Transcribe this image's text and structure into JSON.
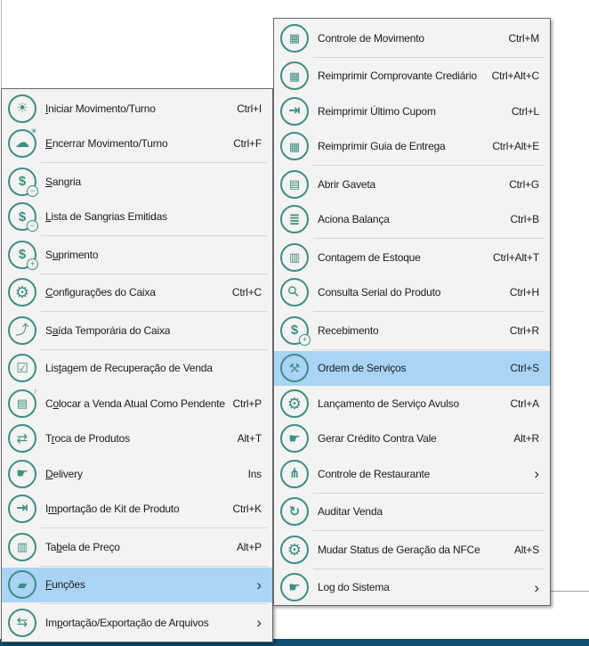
{
  "colors": {
    "accent_teal": "#3f8d84",
    "highlight_blue": "#a9d4f5",
    "menu_background": "#f3f3f2",
    "menu_border": "#666a6b",
    "separator": "#d6d6d6",
    "text": "#1c1c1c",
    "bottom_edge_bar": "#104e72"
  },
  "glyphs": {
    "submenu_arrow": "›"
  },
  "icons": {
    "sun-icon": {
      "glyph": "☀",
      "size": 15
    },
    "cloud-sun-icon": {
      "glyph": "☁",
      "size": 16,
      "badge": "☀",
      "badge_style": "plain-tr"
    },
    "money-minus-icon": {
      "glyph": "$",
      "size": 15,
      "bold": true,
      "badge": "−"
    },
    "money-plus-icon": {
      "glyph": "$",
      "size": 15,
      "bold": true,
      "badge": "+"
    },
    "gear-wrench-icon": {
      "glyph": "⚙",
      "size": 18
    },
    "person-exit-icon": {
      "glyph": "⤴",
      "size": 15
    },
    "clipboard-check-icon": {
      "glyph": "☑",
      "size": 15
    },
    "drawer-up-icon": {
      "glyph": "▤",
      "size": 13,
      "badge": "↑",
      "badge_style": "plain-tr"
    },
    "swap-arrows-icon": {
      "glyph": "⇄",
      "size": 15
    },
    "hand-card-icon": {
      "glyph": "☛",
      "size": 15
    },
    "import-door-icon": {
      "glyph": "⇥",
      "size": 16,
      "bold": true
    },
    "clipboard-icon": {
      "glyph": "▥",
      "size": 13
    },
    "register-icon": {
      "glyph": "▦",
      "size": 13
    },
    "folder-functions-icon": {
      "glyph": "▰",
      "size": 14
    },
    "transfer-arrows-icon": {
      "glyph": "⇆",
      "size": 15
    },
    "drawer-icon": {
      "glyph": "▤",
      "size": 13
    },
    "layers-icon": {
      "glyph": "≣",
      "size": 15,
      "bold": true
    },
    "magnifier-icon": {
      "glyph": "⚲",
      "size": 16,
      "rotate": -45,
      "bold": true
    },
    "tools-icon": {
      "glyph": "⚒",
      "size": 14
    },
    "cutlery-icon": {
      "glyph": "⋔",
      "size": 15,
      "bold": true
    },
    "refresh-circle-icon": {
      "glyph": "↻",
      "size": 15,
      "bold": true
    }
  },
  "left_menu": {
    "items": [
      {
        "label": "Iniciar Movimento/Turno",
        "accel": 0,
        "shortcut": "Ctrl+I",
        "icon": "sun-icon"
      },
      {
        "label": "Encerrar Movimento/Turno",
        "accel": 0,
        "shortcut": "Ctrl+F",
        "icon": "cloud-sun-icon",
        "separator_after": true
      },
      {
        "label": "Sangria",
        "accel": 0,
        "icon": "money-minus-icon"
      },
      {
        "label": "Lista de Sangrias Emitidas",
        "accel": 0,
        "icon": "money-minus-icon",
        "separator_after": true
      },
      {
        "label": "Suprimento",
        "accel": 1,
        "icon": "money-plus-icon",
        "separator_after": true
      },
      {
        "label": "Configurações do Caixa",
        "accel": 0,
        "shortcut": "Ctrl+C",
        "icon": "gear-wrench-icon",
        "separator_after": true
      },
      {
        "label": "Saída Temporária do Caixa",
        "accel": 1,
        "icon": "person-exit-icon",
        "separator_after": true
      },
      {
        "label": "Listagem de Recuperação de Venda",
        "accel": 3,
        "icon": "clipboard-check-icon"
      },
      {
        "label": "Colocar a Venda Atual Como Pendente",
        "accel": 1,
        "shortcut": "Ctrl+P",
        "icon": "drawer-up-icon"
      },
      {
        "label": "Troca de Produtos",
        "accel": 1,
        "shortcut": "Alt+T",
        "icon": "swap-arrows-icon"
      },
      {
        "label": "Delivery",
        "accel": 0,
        "shortcut": "Ins",
        "icon": "hand-card-icon"
      },
      {
        "label": "Importação de Kit de Produto",
        "accel": 1,
        "shortcut": "Ctrl+K",
        "icon": "import-door-icon",
        "separator_after": true
      },
      {
        "label": "Tabela de Preço",
        "accel": 2,
        "shortcut": "Alt+P",
        "icon": "clipboard-icon",
        "separator_after": true
      },
      {
        "label": "Funções",
        "accel": 0,
        "icon": "folder-functions-icon",
        "highlighted": true,
        "submenu": true,
        "separator_after": true
      },
      {
        "label": "Importação/Exportação de Arquivos",
        "accel": 2,
        "icon": "transfer-arrows-icon",
        "submenu": true
      }
    ]
  },
  "right_menu": {
    "items": [
      {
        "label": "Controle de Movimento",
        "shortcut": "Ctrl+M",
        "icon": "register-icon",
        "separator_after": true
      },
      {
        "label": "Reimprimir Comprovante Crediário",
        "shortcut": "Ctrl+Alt+C",
        "icon": "register-icon"
      },
      {
        "label": "Reimprimir Último Cupom",
        "shortcut": "Ctrl+L",
        "icon": "import-door-icon"
      },
      {
        "label": "Reimprimir Guia de Entrega",
        "shortcut": "Ctrl+Alt+E",
        "icon": "register-icon",
        "separator_after": true
      },
      {
        "label": "Abrir Gaveta",
        "shortcut": "Ctrl+G",
        "icon": "drawer-icon"
      },
      {
        "label": "Aciona Balança",
        "shortcut": "Ctrl+B",
        "icon": "layers-icon",
        "separator_after": true
      },
      {
        "label": "Contagem de Estoque",
        "shortcut": "Ctrl+Alt+T",
        "icon": "clipboard-icon"
      },
      {
        "label": "Consulta Serial do Produto",
        "shortcut": "Ctrl+H",
        "icon": "magnifier-icon",
        "separator_after": true
      },
      {
        "label": "Recebimento",
        "shortcut": "Ctrl+R",
        "icon": "money-plus-icon",
        "separator_after": true
      },
      {
        "label": "Ordem de Serviços",
        "shortcut": "Ctrl+S",
        "icon": "tools-icon",
        "highlighted": true
      },
      {
        "label": "Lançamento de Serviço Avulso",
        "shortcut": "Ctrl+A",
        "icon": "gear-wrench-icon"
      },
      {
        "label": "Gerar Crédito Contra Vale",
        "shortcut": "Alt+R",
        "icon": "hand-card-icon"
      },
      {
        "label": "Controle de Restaurante",
        "icon": "cutlery-icon",
        "submenu": true,
        "separator_after": true
      },
      {
        "label": "Auditar Venda",
        "icon": "refresh-circle-icon",
        "separator_after": true
      },
      {
        "label": "Mudar Status de Geração da NFCe",
        "shortcut": "Alt+S",
        "icon": "gear-wrench-icon",
        "separator_after": true
      },
      {
        "label": "Log do Sistema",
        "icon": "hand-card-icon",
        "submenu": true
      }
    ]
  }
}
